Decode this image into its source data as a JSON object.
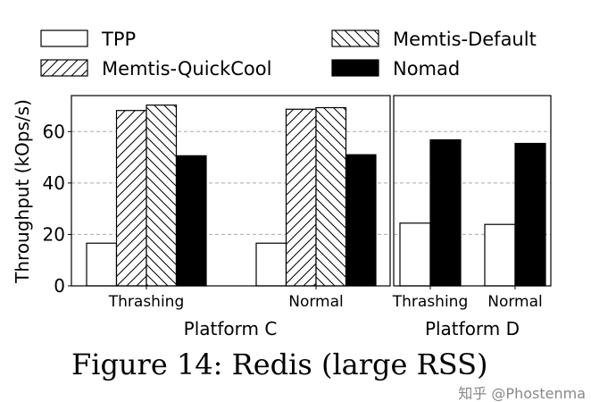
{
  "chart_data": {
    "type": "bar",
    "ylabel": "Throughput (kOps/s)",
    "ylim": [
      0,
      74
    ],
    "yticks": [
      0,
      20,
      40,
      60
    ],
    "grid": true,
    "legend_position": "top",
    "caption": "Figure 14: Redis (large RSS)",
    "watermark": "知乎 @Phostenma",
    "series": [
      {
        "name": "TPP",
        "fill": "#ffffff",
        "hatch": "none"
      },
      {
        "name": "Memtis-QuickCool",
        "fill": "#ffffff",
        "hatch": "forward"
      },
      {
        "name": "Memtis-Default",
        "fill": "#ffffff",
        "hatch": "back"
      },
      {
        "name": "Nomad",
        "fill": "#000000",
        "hatch": "none"
      }
    ],
    "panels": [
      {
        "label": "Platform C",
        "categories": [
          "Thrashing",
          "Normal"
        ],
        "values": {
          "TPP": [
            16.6,
            16.6
          ],
          "Memtis-QuickCool": [
            68.2,
            68.7
          ],
          "Memtis-Default": [
            70.3,
            69.3
          ],
          "Nomad": [
            50.6,
            51.0
          ]
        }
      },
      {
        "label": "Platform D",
        "categories": [
          "Thrashing",
          "Normal"
        ],
        "values": {
          "TPP": [
            24.4,
            23.9
          ],
          "Nomad": [
            56.8,
            55.4
          ]
        }
      }
    ]
  }
}
